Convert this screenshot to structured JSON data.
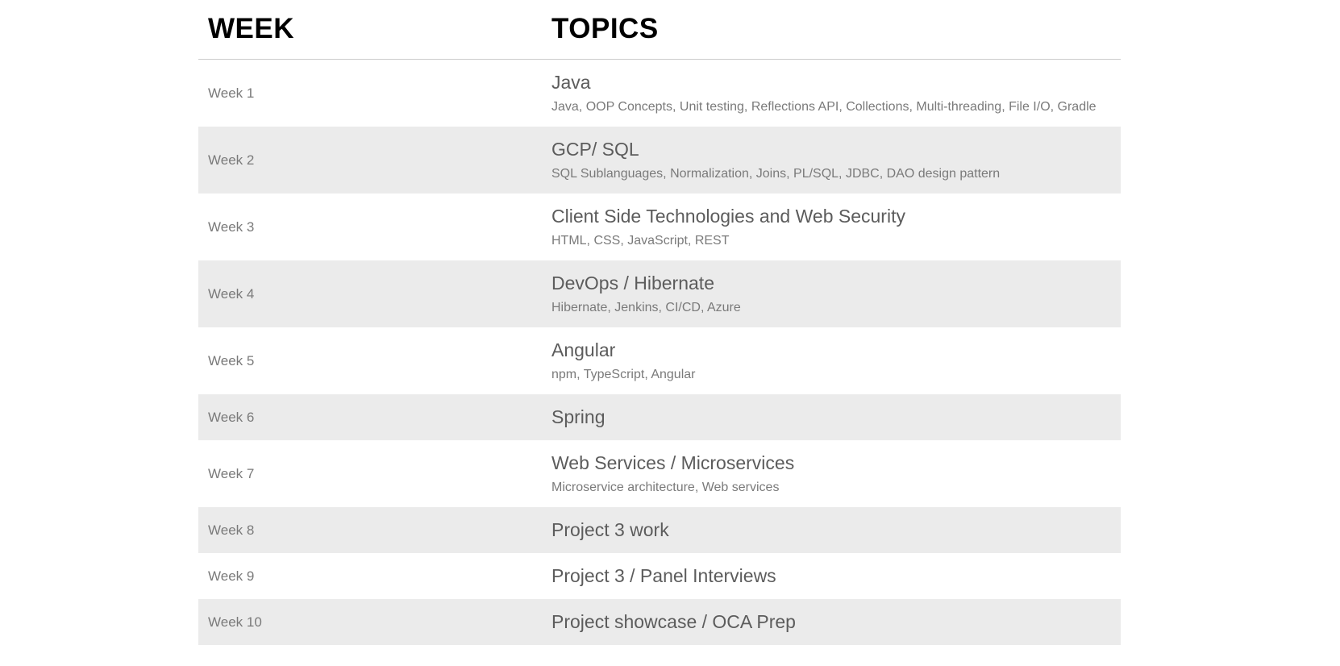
{
  "header": {
    "week_label": "WEEK",
    "topics_label": "TOPICS"
  },
  "weeks": [
    {
      "week": "Week 1",
      "title": "Java",
      "details": "Java, OOP Concepts, Unit testing, Reflections API, Collections, Multi-threading, File I/O, Gradle"
    },
    {
      "week": "Week 2",
      "title": "GCP/ SQL",
      "details": "SQL Sublanguages, Normalization, Joins, PL/SQL, JDBC, DAO design pattern"
    },
    {
      "week": "Week 3",
      "title": "Client Side Technologies and Web Security",
      "details": "HTML, CSS, JavaScript, REST"
    },
    {
      "week": "Week 4",
      "title": "DevOps / Hibernate",
      "details": "Hibernate, Jenkins, CI/CD, Azure"
    },
    {
      "week": "Week 5",
      "title": "Angular",
      "details": "npm, TypeScript, Angular"
    },
    {
      "week": "Week 6",
      "title": "Spring",
      "details": ""
    },
    {
      "week": "Week 7",
      "title": "Web Services / Microservices",
      "details": "Microservice architecture, Web services"
    },
    {
      "week": "Week 8",
      "title": "Project 3 work",
      "details": ""
    },
    {
      "week": "Week 9",
      "title": "Project 3 / Panel Interviews",
      "details": ""
    },
    {
      "week": "Week 10",
      "title": "Project showcase / OCA Prep",
      "details": ""
    }
  ]
}
